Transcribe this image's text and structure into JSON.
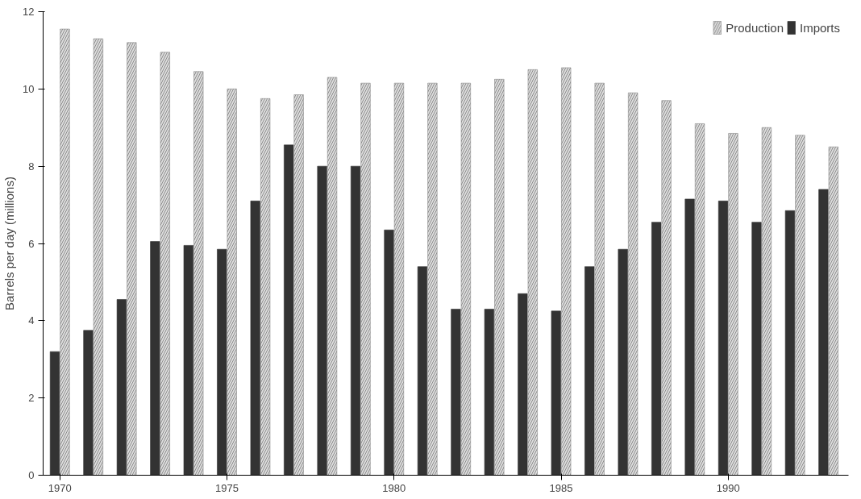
{
  "chart_data": {
    "type": "bar",
    "ylabel": "Barrels per day (millions)",
    "x": [
      1970,
      1971,
      1972,
      1973,
      1974,
      1975,
      1976,
      1977,
      1978,
      1979,
      1980,
      1981,
      1982,
      1983,
      1984,
      1985,
      1986,
      1987,
      1988,
      1989,
      1990,
      1991,
      1992,
      1993
    ],
    "series": [
      {
        "name": "Imports",
        "color": "#333333",
        "values": [
          3.2,
          3.75,
          4.55,
          6.05,
          5.95,
          5.85,
          7.1,
          8.55,
          8.0,
          8.0,
          6.35,
          5.4,
          4.3,
          4.3,
          4.7,
          4.25,
          5.4,
          5.85,
          6.55,
          7.15,
          7.1,
          6.55,
          6.85,
          7.4
        ]
      },
      {
        "name": "Production",
        "color": "#dddddd",
        "values": [
          11.55,
          11.3,
          11.2,
          10.95,
          10.45,
          10.0,
          9.75,
          9.85,
          10.3,
          10.15,
          10.15,
          10.15,
          10.15,
          10.25,
          10.5,
          10.55,
          10.15,
          9.9,
          9.7,
          9.1,
          8.85,
          9.0,
          8.8,
          8.5
        ]
      }
    ],
    "xlim": [
      1969.5,
      1993.6
    ],
    "ylim": [
      0,
      12
    ],
    "xticks": [
      1970,
      1975,
      1980,
      1985,
      1990
    ],
    "yticks": [
      0,
      2,
      4,
      6,
      8,
      10,
      12
    ],
    "grid": false,
    "legend": "top right"
  }
}
